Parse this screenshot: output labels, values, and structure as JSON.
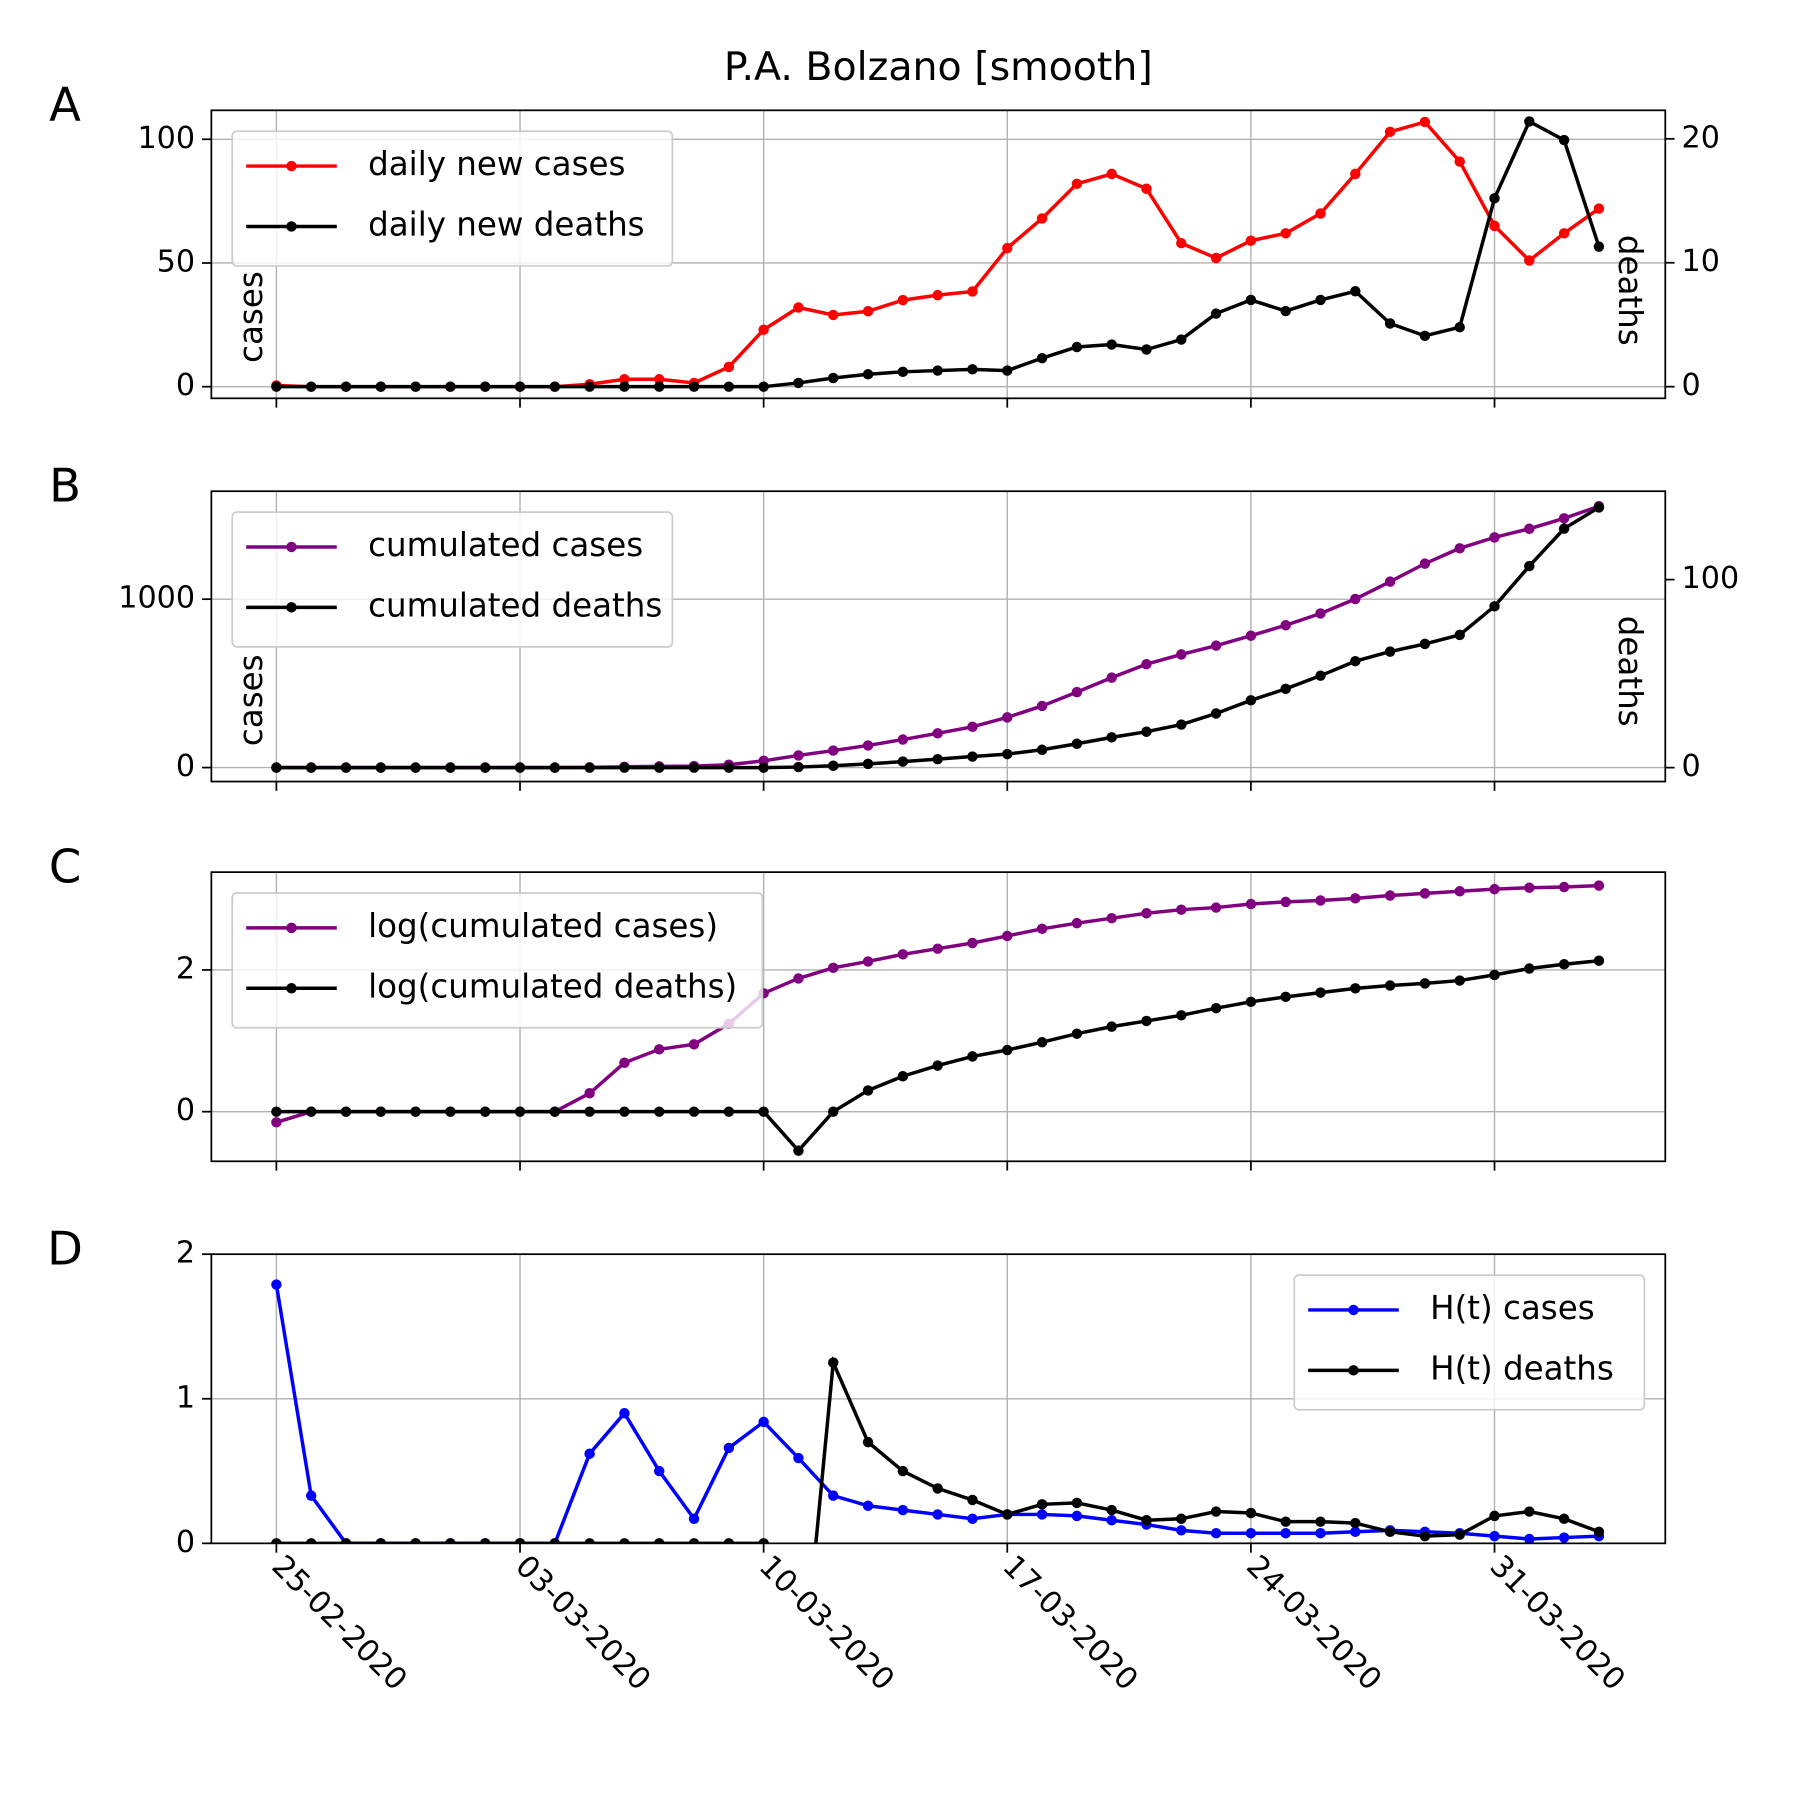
{
  "chart_data": [
    {
      "type": "line",
      "label": "A",
      "title": "P.A. Bolzano [smooth]",
      "ylabel": "cases",
      "y2label": "deaths",
      "x": [
        "25-02-2020",
        "26-02-2020",
        "27-02-2020",
        "28-02-2020",
        "29-02-2020",
        "01-03-2020",
        "02-03-2020",
        "03-03-2020",
        "04-03-2020",
        "05-03-2020",
        "06-03-2020",
        "07-03-2020",
        "08-03-2020",
        "09-03-2020",
        "10-03-2020",
        "11-03-2020",
        "12-03-2020",
        "13-03-2020",
        "14-03-2020",
        "15-03-2020",
        "16-03-2020",
        "17-03-2020",
        "18-03-2020",
        "19-03-2020",
        "20-03-2020",
        "21-03-2020",
        "22-03-2020",
        "23-03-2020",
        "24-03-2020",
        "25-03-2020",
        "26-03-2020",
        "27-03-2020",
        "28-03-2020",
        "29-03-2020",
        "30-03-2020",
        "31-03-2020",
        "01-04-2020",
        "02-04-2020",
        "03-04-2020"
      ],
      "xticks": [
        "25-02-2020",
        "03-03-2020",
        "10-03-2020",
        "17-03-2020",
        "24-03-2020",
        "31-03-2020"
      ],
      "ylim": [
        -4.7,
        111.7
      ],
      "yticks": [
        0,
        50,
        100
      ],
      "y2lim": [
        -0.94,
        22.3
      ],
      "y2ticks": [
        0,
        10,
        20
      ],
      "grid": true,
      "legend": "upper left",
      "series": [
        {
          "name": "daily new cases",
          "color": "#ff0000",
          "values": [
            0.5,
            0,
            0,
            0,
            0,
            0,
            0,
            0,
            0,
            1,
            3,
            3,
            1.5,
            8,
            23,
            32,
            29,
            30.5,
            35,
            37,
            38.5,
            56,
            68,
            82,
            86,
            80,
            58,
            52,
            59,
            62,
            70,
            86,
            103,
            107,
            91,
            65,
            51,
            62,
            72
          ]
        },
        {
          "name": "daily new deaths",
          "color": "#000000",
          "axis": "y2",
          "values": [
            0,
            0,
            0,
            0,
            0,
            0,
            0,
            0,
            0,
            0,
            0,
            0,
            0,
            0,
            0,
            0.3,
            0.7,
            1.0,
            1.2,
            1.3,
            1.4,
            1.3,
            2.3,
            3.2,
            3.4,
            3.0,
            3.8,
            5.9,
            7.0,
            6.1,
            7.0,
            7.7,
            5.1,
            4.1,
            4.8,
            15.2,
            21.4,
            19.9,
            11.3
          ]
        }
      ]
    },
    {
      "type": "line",
      "label": "B",
      "ylabel": "cases",
      "y2label": "deaths",
      "x": [
        "25-02-2020",
        "26-02-2020",
        "27-02-2020",
        "28-02-2020",
        "29-02-2020",
        "01-03-2020",
        "02-03-2020",
        "03-03-2020",
        "04-03-2020",
        "05-03-2020",
        "06-03-2020",
        "07-03-2020",
        "08-03-2020",
        "09-03-2020",
        "10-03-2020",
        "11-03-2020",
        "12-03-2020",
        "13-03-2020",
        "14-03-2020",
        "15-03-2020",
        "16-03-2020",
        "17-03-2020",
        "18-03-2020",
        "19-03-2020",
        "20-03-2020",
        "21-03-2020",
        "22-03-2020",
        "23-03-2020",
        "24-03-2020",
        "25-03-2020",
        "26-03-2020",
        "27-03-2020",
        "28-03-2020",
        "29-03-2020",
        "30-03-2020",
        "31-03-2020",
        "01-04-2020",
        "02-04-2020",
        "03-04-2020"
      ],
      "xticks": [
        "25-02-2020",
        "03-03-2020",
        "10-03-2020",
        "17-03-2020",
        "24-03-2020",
        "31-03-2020"
      ],
      "ylim": [
        -83,
        1641
      ],
      "yticks": [
        0,
        1000
      ],
      "y2lim": [
        -7.4,
        147
      ],
      "y2ticks": [
        0,
        100
      ],
      "grid": true,
      "legend": "upper left",
      "series": [
        {
          "name": "cumulated cases",
          "color": "#800080",
          "values": [
            0.5,
            0.5,
            0.5,
            0.5,
            0.5,
            0.5,
            0.5,
            0.5,
            0.5,
            1.5,
            4.5,
            7.5,
            9,
            17,
            40,
            72,
            101,
            131.5,
            166.5,
            203.5,
            242,
            298,
            366,
            448,
            534,
            614,
            672,
            724,
            783,
            845,
            915,
            1001,
            1104,
            1211,
            1302,
            1367,
            1418,
            1480,
            1552
          ]
        },
        {
          "name": "cumulated deaths",
          "color": "#000000",
          "axis": "y2",
          "values": [
            0,
            0,
            0,
            0,
            0,
            0,
            0,
            0,
            0,
            0,
            0,
            0,
            0,
            0,
            0,
            0.3,
            1,
            2,
            3.2,
            4.5,
            5.9,
            7.2,
            9.5,
            12.7,
            16.1,
            19.1,
            22.9,
            28.8,
            35.8,
            41.9,
            48.9,
            56.6,
            61.7,
            65.8,
            70.6,
            85.8,
            107.2,
            127.1,
            138.4
          ]
        }
      ]
    },
    {
      "type": "line",
      "label": "C",
      "x": [
        "25-02-2020",
        "26-02-2020",
        "27-02-2020",
        "28-02-2020",
        "29-02-2020",
        "01-03-2020",
        "02-03-2020",
        "03-03-2020",
        "04-03-2020",
        "05-03-2020",
        "06-03-2020",
        "07-03-2020",
        "08-03-2020",
        "09-03-2020",
        "10-03-2020",
        "11-03-2020",
        "12-03-2020",
        "13-03-2020",
        "14-03-2020",
        "15-03-2020",
        "16-03-2020",
        "17-03-2020",
        "18-03-2020",
        "19-03-2020",
        "20-03-2020",
        "21-03-2020",
        "22-03-2020",
        "23-03-2020",
        "24-03-2020",
        "25-03-2020",
        "26-03-2020",
        "27-03-2020",
        "28-03-2020",
        "29-03-2020",
        "30-03-2020",
        "31-03-2020",
        "01-04-2020",
        "02-04-2020",
        "03-04-2020"
      ],
      "xticks": [
        "25-02-2020",
        "03-03-2020",
        "10-03-2020",
        "17-03-2020",
        "24-03-2020",
        "31-03-2020"
      ],
      "ylim": [
        -0.7,
        3.38
      ],
      "yticks": [
        0,
        2
      ],
      "grid": true,
      "legend": "upper left",
      "series": [
        {
          "name": "log(cumulated cases)",
          "color": "#800080",
          "values": [
            -0.15,
            0,
            0,
            0,
            0,
            0,
            0,
            0,
            0,
            0.26,
            0.69,
            0.88,
            0.95,
            1.24,
            1.67,
            1.88,
            2.03,
            2.12,
            2.22,
            2.3,
            2.38,
            2.48,
            2.58,
            2.66,
            2.73,
            2.8,
            2.85,
            2.88,
            2.93,
            2.96,
            2.98,
            3.01,
            3.05,
            3.08,
            3.11,
            3.14,
            3.16,
            3.17,
            3.19
          ]
        },
        {
          "name": "log(cumulated deaths)",
          "color": "#000000",
          "values": [
            0,
            0,
            0,
            0,
            0,
            0,
            0,
            0,
            0,
            0,
            0,
            0,
            0,
            0,
            0,
            -0.55,
            0,
            0.3,
            0.5,
            0.65,
            0.78,
            0.87,
            0.98,
            1.1,
            1.2,
            1.28,
            1.36,
            1.46,
            1.55,
            1.62,
            1.68,
            1.74,
            1.78,
            1.81,
            1.85,
            1.93,
            2.02,
            2.08,
            2.13
          ]
        }
      ]
    },
    {
      "type": "line",
      "label": "D",
      "x": [
        "25-02-2020",
        "26-02-2020",
        "27-02-2020",
        "28-02-2020",
        "29-02-2020",
        "01-03-2020",
        "02-03-2020",
        "03-03-2020",
        "04-03-2020",
        "05-03-2020",
        "06-03-2020",
        "07-03-2020",
        "08-03-2020",
        "09-03-2020",
        "10-03-2020",
        "11-03-2020",
        "12-03-2020",
        "13-03-2020",
        "14-03-2020",
        "15-03-2020",
        "16-03-2020",
        "17-03-2020",
        "18-03-2020",
        "19-03-2020",
        "20-03-2020",
        "21-03-2020",
        "22-03-2020",
        "23-03-2020",
        "24-03-2020",
        "25-03-2020",
        "26-03-2020",
        "27-03-2020",
        "28-03-2020",
        "29-03-2020",
        "30-03-2020",
        "31-03-2020",
        "01-04-2020",
        "02-04-2020",
        "03-04-2020"
      ],
      "xticks": [
        "25-02-2020",
        "03-03-2020",
        "10-03-2020",
        "17-03-2020",
        "24-03-2020",
        "31-03-2020"
      ],
      "ylim": [
        0,
        2
      ],
      "yticks": [
        0,
        1,
        2
      ],
      "grid": true,
      "legend": "upper right",
      "series": [
        {
          "name": "H(t) cases",
          "color": "#0000ff",
          "values": [
            1.79,
            0.33,
            0,
            0,
            0,
            0,
            0,
            0,
            0,
            0.62,
            0.9,
            0.5,
            0.17,
            0.66,
            0.84,
            0.59,
            0.33,
            0.26,
            0.23,
            0.2,
            0.17,
            0.2,
            0.2,
            0.19,
            0.16,
            0.13,
            0.09,
            0.07,
            0.07,
            0.07,
            0.07,
            0.08,
            0.09,
            0.08,
            0.07,
            0.05,
            0.03,
            0.04,
            0.05
          ]
        },
        {
          "name": "H(t) deaths",
          "color": "#000000",
          "values": [
            0,
            0,
            0,
            0,
            0,
            0,
            0,
            0,
            0,
            0,
            0,
            0,
            0,
            0,
            0,
            -1.25,
            1.25,
            0.7,
            0.5,
            0.38,
            0.3,
            0.2,
            0.27,
            0.28,
            0.23,
            0.16,
            0.17,
            0.22,
            0.21,
            0.15,
            0.15,
            0.14,
            0.08,
            0.05,
            0.06,
            0.19,
            0.22,
            0.17,
            0.08
          ]
        }
      ]
    }
  ]
}
